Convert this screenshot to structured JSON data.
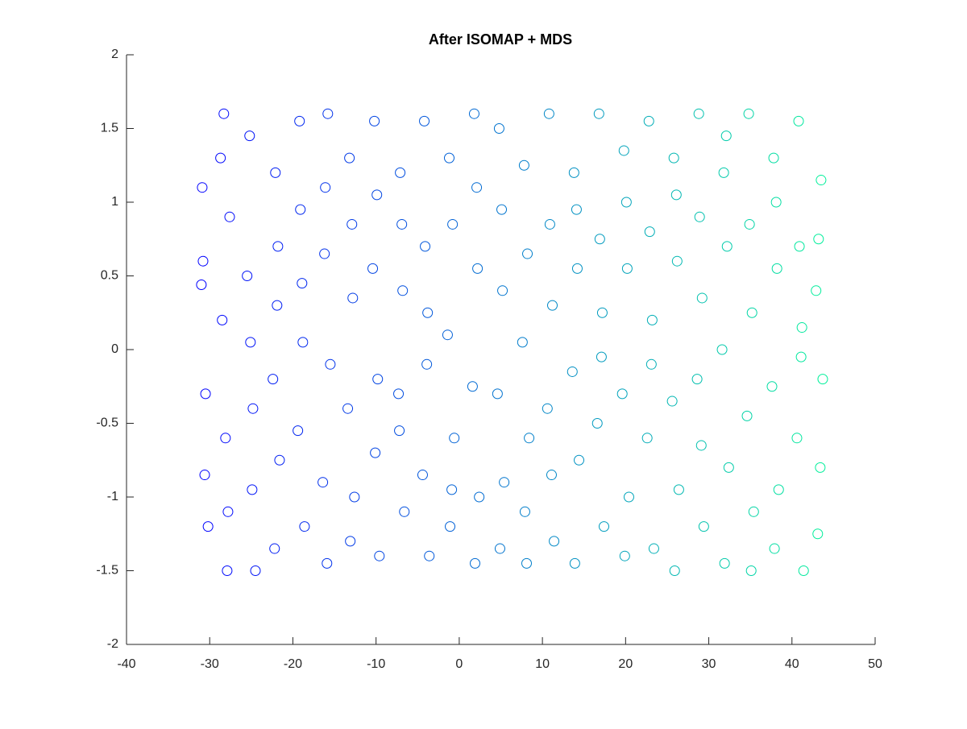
{
  "chart_data": {
    "type": "scatter",
    "title": "After ISOMAP + MDS",
    "xlim": [
      -40,
      50
    ],
    "ylim": [
      -2,
      2
    ],
    "xticks": [
      -40,
      -30,
      -20,
      -10,
      0,
      10,
      20,
      30,
      40,
      50
    ],
    "yticks": [
      -2,
      -1.5,
      -1,
      -0.5,
      0,
      0.5,
      1,
      1.5,
      2
    ],
    "colormap": [
      "#0000ff",
      "#00f09a"
    ],
    "x": [
      -30.8,
      -30.5,
      -30.9,
      -30.2,
      -31,
      -30.6,
      -28.3,
      -27.9,
      -28.5,
      -27.6,
      -28.1,
      -27.8,
      -28.7,
      -25.2,
      -24.8,
      -25.5,
      -24.5,
      -25.1,
      -24.9,
      -22.1,
      -21.8,
      -22.4,
      -21.6,
      -22.2,
      -21.9,
      -19.2,
      -18.8,
      -19.4,
      -18.6,
      -19.1,
      -18.9,
      -15.8,
      -16.2,
      -15.5,
      -16.4,
      -15.9,
      -16.1,
      -13.2,
      -12.8,
      -13.4,
      -12.6,
      -13.1,
      -12.9,
      -10.2,
      -9.8,
      -10.4,
      -9.6,
      -10.1,
      -9.9,
      -7.1,
      -6.8,
      -7.3,
      -6.6,
      -7.2,
      -6.9,
      -4.2,
      -3.8,
      -4.4,
      -3.6,
      -4.1,
      -3.9,
      -1.2,
      -0.8,
      -1.4,
      -0.6,
      -1.1,
      -0.9,
      1.8,
      2.2,
      1.6,
      2.4,
      1.9,
      2.1,
      4.8,
      5.2,
      4.6,
      5.4,
      4.9,
      5.1,
      7.8,
      8.2,
      7.6,
      8.4,
      7.9,
      8.1,
      10.8,
      11.2,
      10.6,
      11.4,
      10.9,
      11.1,
      13.8,
      14.2,
      13.6,
      14.4,
      13.9,
      14.1,
      16.8,
      17.2,
      16.6,
      17.4,
      16.9,
      17.1,
      19.8,
      20.2,
      19.6,
      20.4,
      19.9,
      20.1,
      22.8,
      23.2,
      22.6,
      23.4,
      22.9,
      23.1,
      25.8,
      26.2,
      25.6,
      26.4,
      25.9,
      26.1,
      28.8,
      29.2,
      28.6,
      29.4,
      28.9,
      29.1,
      31.8,
      32.2,
      31.6,
      32.4,
      31.9,
      32.1,
      34.8,
      35.2,
      34.6,
      35.4,
      34.9,
      35.1,
      37.8,
      38.2,
      37.6,
      38.4,
      37.9,
      38.1,
      40.8,
      41.2,
      40.6,
      41.4,
      40.9,
      41.1,
      43.5,
      43.2,
      43.7,
      43.4,
      43.1,
      42.9
    ],
    "y": [
      0.6,
      -0.3,
      1.1,
      -1.2,
      0.44,
      -0.85,
      1.6,
      -1.5,
      0.2,
      0.9,
      -0.6,
      -1.1,
      1.3,
      1.45,
      -0.4,
      0.5,
      -1.5,
      0.05,
      -0.95,
      1.2,
      0.7,
      -0.2,
      -0.75,
      -1.35,
      0.3,
      1.55,
      0.05,
      -0.55,
      -1.2,
      0.95,
      0.45,
      1.6,
      0.65,
      -0.1,
      -0.9,
      -1.45,
      1.1,
      1.3,
      0.35,
      -0.4,
      -1.0,
      -1.3,
      0.85,
      1.55,
      -0.2,
      0.55,
      -1.4,
      -0.7,
      1.05,
      1.2,
      0.4,
      -0.3,
      -1.1,
      -0.55,
      0.85,
      1.55,
      0.25,
      -0.85,
      -1.4,
      0.7,
      -0.1,
      1.3,
      0.85,
      0.1,
      -0.6,
      -1.2,
      -0.95,
      1.6,
      0.55,
      -0.25,
      -1.0,
      -1.45,
      1.1,
      1.5,
      0.4,
      -0.3,
      -0.9,
      -1.35,
      0.95,
      1.25,
      0.65,
      0.05,
      -0.6,
      -1.1,
      -1.45,
      1.6,
      0.3,
      -0.4,
      -1.3,
      0.85,
      -0.85,
      1.2,
      0.55,
      -0.15,
      -0.75,
      -1.45,
      0.95,
      1.6,
      0.25,
      -0.5,
      -1.2,
      0.75,
      -0.05,
      1.35,
      0.55,
      -0.3,
      -1.0,
      -1.4,
      1.0,
      1.55,
      0.2,
      -0.6,
      -1.35,
      0.8,
      -0.1,
      1.3,
      0.6,
      -0.35,
      -0.95,
      -1.5,
      1.05,
      1.6,
      0.35,
      -0.2,
      -1.2,
      0.9,
      -0.65,
      1.2,
      0.7,
      0.0,
      -0.8,
      -1.45,
      1.45,
      1.6,
      0.25,
      -0.45,
      -1.1,
      0.85,
      -1.5,
      1.3,
      0.55,
      -0.25,
      -0.95,
      -1.35,
      1.0,
      1.55,
      0.15,
      -0.6,
      -1.5,
      0.7,
      -0.05,
      1.15,
      0.75,
      -0.2,
      -0.8,
      -1.25,
      0.4
    ]
  }
}
